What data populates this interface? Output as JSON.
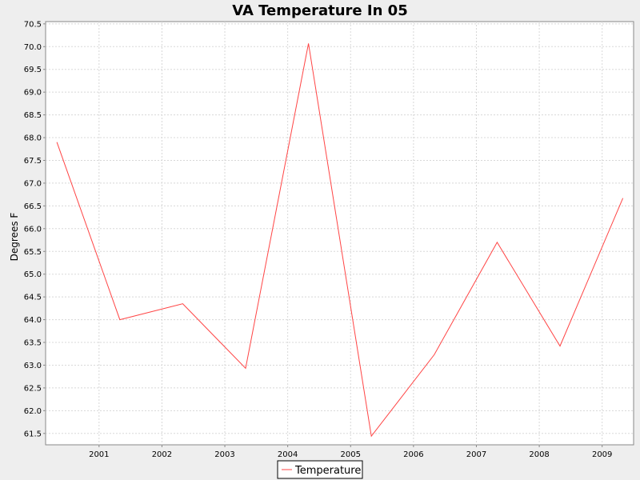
{
  "chart_data": {
    "type": "line",
    "title": "VA Temperature In 05",
    "xlabel": "",
    "ylabel": "Degrees F",
    "x_tick_labels": [
      "2001",
      "2002",
      "2003",
      "2004",
      "2005",
      "2006",
      "2007",
      "2008",
      "2009"
    ],
    "y_tick_labels": [
      "61.5",
      "62.0",
      "62.5",
      "63.0",
      "63.5",
      "64.0",
      "64.5",
      "65.0",
      "65.5",
      "66.0",
      "66.5",
      "67.0",
      "67.5",
      "68.0",
      "68.5",
      "69.0",
      "69.5",
      "70.0",
      "70.5"
    ],
    "xlim": [
      2000.15,
      2009.5
    ],
    "ylim": [
      61.25,
      70.55
    ],
    "grid": true,
    "legend_position": "bottom-center",
    "series": [
      {
        "name": "Temperature",
        "color": "#ff4444",
        "x": [
          2000.33,
          2001.33,
          2002.33,
          2003.33,
          2004.33,
          2005.33,
          2006.33,
          2007.33,
          2008.33,
          2009.33
        ],
        "y": [
          67.9,
          64.0,
          64.35,
          62.93,
          70.07,
          61.44,
          63.23,
          65.7,
          63.42,
          66.67
        ]
      }
    ]
  }
}
